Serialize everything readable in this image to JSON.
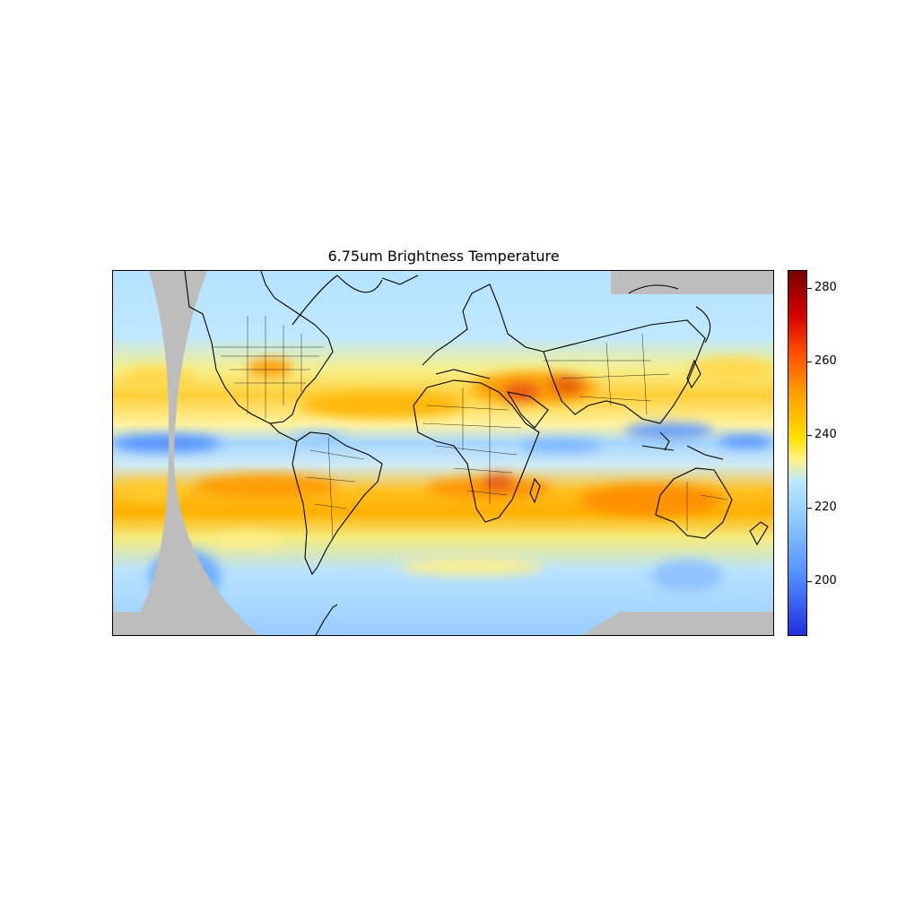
{
  "title": "6.75um Brightness Temperature",
  "colorbar": {
    "ticks": [
      {
        "value": 200,
        "label": "200"
      },
      {
        "value": 220,
        "label": "220"
      },
      {
        "value": 240,
        "label": "240"
      },
      {
        "value": 260,
        "label": "260"
      },
      {
        "value": 280,
        "label": "280"
      }
    ],
    "vmin": 185,
    "vmax": 285,
    "colormap": "jet-like blue-cyan-yellow-red"
  },
  "colors": {
    "no_data": "#bdbdbd",
    "cold": "#1f3cff",
    "cool": "#a8dcff",
    "mild": "#f6f08a",
    "warm": "#ffc21a",
    "hot": "#e33a00",
    "coastline": "#000000"
  }
}
